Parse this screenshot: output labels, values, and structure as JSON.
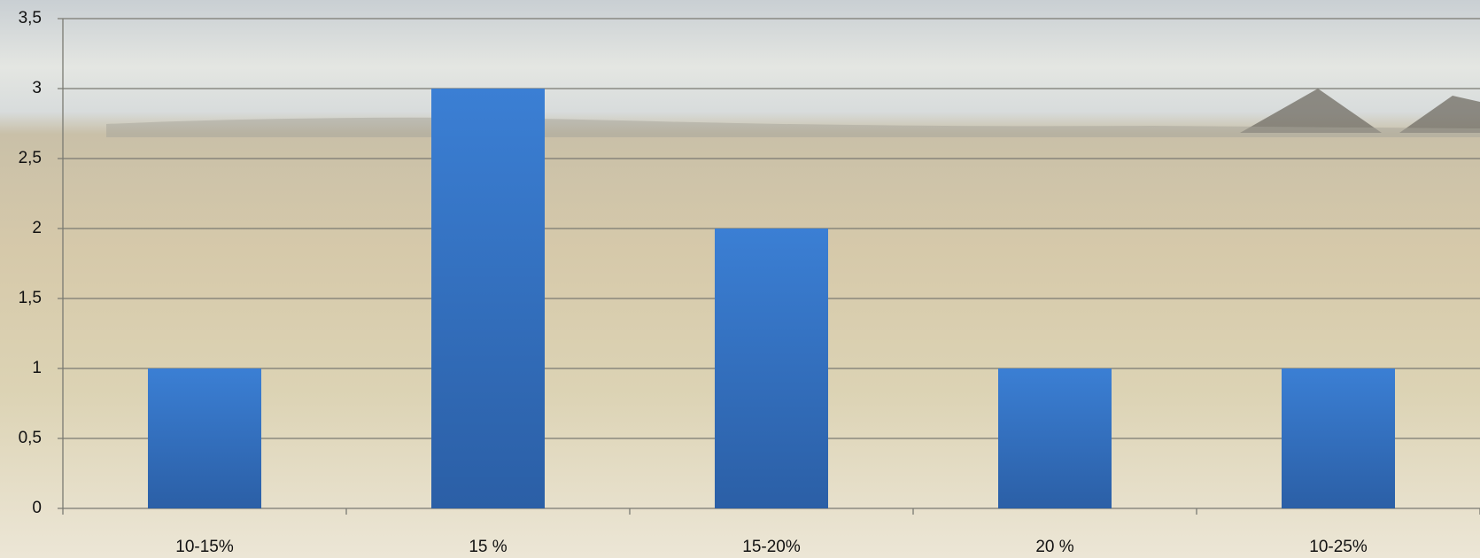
{
  "chart_data": {
    "type": "bar",
    "categories": [
      "10-15%",
      "15 %",
      "15-20%",
      "20 %",
      "10-25%"
    ],
    "values": [
      1,
      3,
      2,
      1,
      1
    ],
    "color": "#3a7fd5",
    "ylim": [
      0,
      3.5
    ],
    "yticks": [
      0,
      {
        "value": 0.5,
        "label": "0,5"
      },
      1,
      {
        "value": 1.5,
        "label": "1,5"
      },
      2,
      {
        "value": 2.5,
        "label": "2,5"
      },
      3,
      {
        "value": 3.5,
        "label": "3,5"
      }
    ],
    "grid": true
  }
}
